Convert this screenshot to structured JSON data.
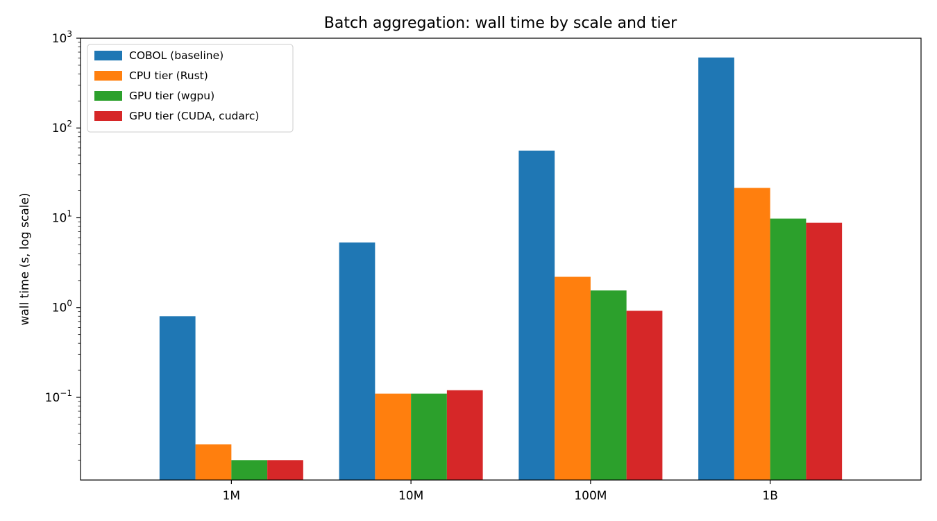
{
  "chart_data": {
    "type": "bar",
    "title": "Batch aggregation: wall time by scale and tier",
    "xlabel": "",
    "ylabel": "wall time (s, log scale)",
    "yscale": "log",
    "ylim": [
      0.012,
      1000
    ],
    "yticks": [
      {
        "value": 0.1,
        "base": "10",
        "exp": "−1"
      },
      {
        "value": 1,
        "base": "10",
        "exp": "0"
      },
      {
        "value": 10,
        "base": "10",
        "exp": "1"
      },
      {
        "value": 100,
        "base": "10",
        "exp": "2"
      },
      {
        "value": 1000,
        "base": "10",
        "exp": "3"
      }
    ],
    "categories": [
      "1M",
      "10M",
      "100M",
      "1B"
    ],
    "legend_position": "upper-left",
    "grid": false,
    "series": [
      {
        "name": "COBOL (baseline)",
        "color": "#1f77b4",
        "values": [
          0.8,
          5.3,
          56,
          610
        ]
      },
      {
        "name": "CPU tier (Rust)",
        "color": "#ff7f0e",
        "values": [
          0.03,
          0.11,
          2.2,
          21.5
        ]
      },
      {
        "name": "GPU tier (wgpu)",
        "color": "#2ca02c",
        "values": [
          0.02,
          0.11,
          1.55,
          9.8
        ]
      },
      {
        "name": "GPU tier (CUDA, cudarc)",
        "color": "#d62728",
        "values": [
          0.02,
          0.12,
          0.92,
          8.8
        ]
      }
    ]
  }
}
